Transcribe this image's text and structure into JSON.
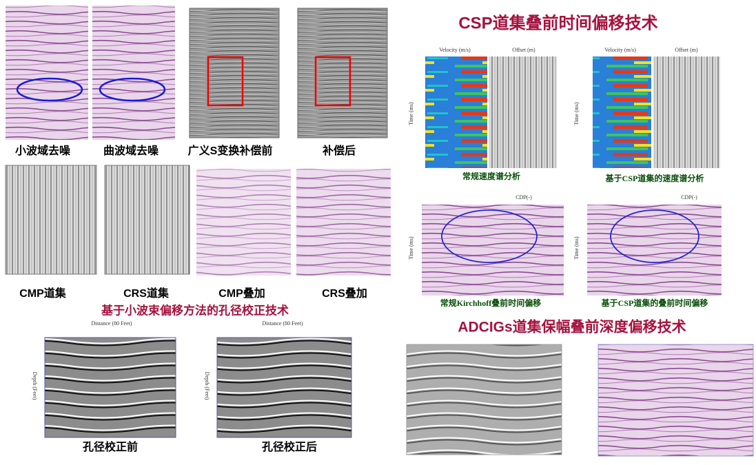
{
  "left": {
    "row1_captions": [
      "小波域去噪",
      "曲波域去噪",
      "广义S变换补偿前",
      "补偿后"
    ],
    "row2_captions": [
      "CMP道集",
      "CRS道集",
      "CMP叠加",
      "CRS叠加"
    ],
    "aperture_title": "基于小波束偏移方法的孔径校正技术",
    "aperture_axis": {
      "x_label": "Distance (80 Feet)",
      "y_label": "Depth (Feet)"
    },
    "aperture_captions": [
      "孔径校正前",
      "孔径校正后"
    ]
  },
  "right": {
    "csp_title": "CSP道集叠前时间偏移技术",
    "velocity_axis": {
      "velocity_label": "Velocity (m/s)",
      "offset_label": "Offset (m)",
      "time_label": "Time (ms)"
    },
    "velocity_captions": [
      "常规速度谱分析",
      "基于CSP道集的速度谱分析"
    ],
    "migration_axis": {
      "cdp_label": "CDP(-)",
      "time_label": "Time (ms)"
    },
    "migration_captions": [
      "常规Kirchhoff叠前时间偏移",
      "基于CSP道集的叠前时间偏移"
    ],
    "adcig_title": "ADCIGs道集保幅叠前深度偏移技术"
  }
}
